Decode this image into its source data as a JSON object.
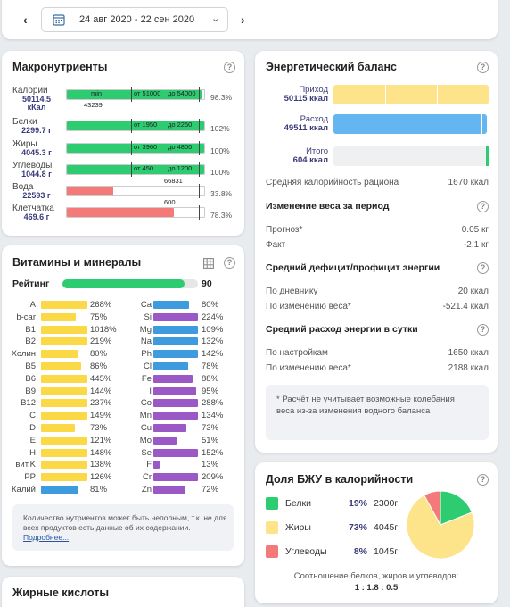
{
  "header": {
    "date_range": "24 авг 2020 - 22 сен 2020"
  },
  "macro": {
    "title": "Макронутриенты",
    "rows": [
      {
        "name": "Калории",
        "value": "50114.5",
        "unit": "кКал",
        "pct": "98.3%",
        "min_label": "min",
        "from": "от 51000",
        "to": "до 54000",
        "below": "43239",
        "fill": 0.98,
        "color": "green"
      },
      {
        "name": "Белки",
        "value": "2299.7 г",
        "pct": "102%",
        "from": "от 1950",
        "to": "до 2250",
        "fill": 1.0,
        "color": "green"
      },
      {
        "name": "Жиры",
        "value": "4045.3 г",
        "pct": "100%",
        "from": "от 3960",
        "to": "до 4800",
        "fill": 1.0,
        "color": "green"
      },
      {
        "name": "Углеводы",
        "value": "1044.8 г",
        "pct": "100%",
        "from": "от 450",
        "to": "до 1200",
        "fill": 1.0,
        "color": "green"
      },
      {
        "name": "Вода",
        "value": "22593 г",
        "pct": "33.8%",
        "mark": "66831",
        "fill": 0.34,
        "color": "red"
      },
      {
        "name": "Клетчатка",
        "value": "469.6 г",
        "pct": "78.3%",
        "mark": "600",
        "fill": 0.78,
        "color": "red"
      }
    ]
  },
  "vitamins": {
    "title": "Витамины и минералы",
    "rating_label": "Рейтинг",
    "rating_value": "90",
    "rating_fill": 0.9,
    "left": [
      {
        "name": "A",
        "pct": "268%",
        "fill": 1.0,
        "color": "yellow"
      },
      {
        "name": "b-car",
        "pct": "75%",
        "fill": 0.75,
        "color": "yellow"
      },
      {
        "name": "B1",
        "pct": "1018%",
        "fill": 1.0,
        "color": "yellow"
      },
      {
        "name": "B2",
        "pct": "219%",
        "fill": 1.0,
        "color": "yellow"
      },
      {
        "name": "Холин",
        "pct": "80%",
        "fill": 0.8,
        "color": "yellow"
      },
      {
        "name": "B5",
        "pct": "86%",
        "fill": 0.86,
        "color": "yellow"
      },
      {
        "name": "B6",
        "pct": "445%",
        "fill": 1.0,
        "color": "yellow"
      },
      {
        "name": "B9",
        "pct": "144%",
        "fill": 1.0,
        "color": "yellow"
      },
      {
        "name": "B12",
        "pct": "237%",
        "fill": 1.0,
        "color": "yellow"
      },
      {
        "name": "C",
        "pct": "149%",
        "fill": 1.0,
        "color": "yellow"
      },
      {
        "name": "D",
        "pct": "73%",
        "fill": 0.73,
        "color": "yellow"
      },
      {
        "name": "E",
        "pct": "121%",
        "fill": 1.0,
        "color": "yellow"
      },
      {
        "name": "H",
        "pct": "148%",
        "fill": 1.0,
        "color": "yellow"
      },
      {
        "name": "вит.K",
        "pct": "138%",
        "fill": 1.0,
        "color": "yellow"
      },
      {
        "name": "PP",
        "pct": "126%",
        "fill": 1.0,
        "color": "yellow"
      },
      {
        "name": "Калий",
        "pct": "81%",
        "fill": 0.81,
        "color": "blue"
      }
    ],
    "right": [
      {
        "name": "Ca",
        "pct": "80%",
        "fill": 0.8,
        "color": "blue"
      },
      {
        "name": "Si",
        "pct": "224%",
        "fill": 1.0,
        "color": "purple"
      },
      {
        "name": "Mg",
        "pct": "109%",
        "fill": 1.0,
        "color": "blue"
      },
      {
        "name": "Na",
        "pct": "132%",
        "fill": 1.0,
        "color": "blue"
      },
      {
        "name": "Ph",
        "pct": "142%",
        "fill": 1.0,
        "color": "blue"
      },
      {
        "name": "Cl",
        "pct": "78%",
        "fill": 0.78,
        "color": "blue"
      },
      {
        "name": "Fe",
        "pct": "88%",
        "fill": 0.88,
        "color": "purple"
      },
      {
        "name": "I",
        "pct": "95%",
        "fill": 0.95,
        "color": "purple"
      },
      {
        "name": "Co",
        "pct": "288%",
        "fill": 1.0,
        "color": "purple"
      },
      {
        "name": "Mn",
        "pct": "134%",
        "fill": 1.0,
        "color": "purple"
      },
      {
        "name": "Cu",
        "pct": "73%",
        "fill": 0.73,
        "color": "purple"
      },
      {
        "name": "Mo",
        "pct": "51%",
        "fill": 0.51,
        "color": "purple"
      },
      {
        "name": "Se",
        "pct": "152%",
        "fill": 1.0,
        "color": "purple"
      },
      {
        "name": "F",
        "pct": "13%",
        "fill": 0.13,
        "color": "purple"
      },
      {
        "name": "Cr",
        "pct": "209%",
        "fill": 1.0,
        "color": "purple"
      },
      {
        "name": "Zn",
        "pct": "72%",
        "fill": 0.72,
        "color": "purple"
      }
    ],
    "note": "Количество нутриентов может быть неполным, т.к. не для всех продуктов есть данные об их содержании.",
    "note_link": "Подробнее..."
  },
  "fatty": {
    "title": "Жирные кислоты"
  },
  "energy": {
    "title": "Энергетический баланс",
    "intake_label": "Приход",
    "intake_value": "50115 ккал",
    "expense_label": "Расход",
    "expense_value": "49511 ккал",
    "total_label": "Итого",
    "total_value": "604 ккал",
    "avg_label": "Средняя калорийность рациона",
    "avg_value": "1670 ккал",
    "weight_title": "Изменение веса за период",
    "forecast_label": "Прогноз*",
    "forecast_value": "0.05 кг",
    "fact_label": "Факт",
    "fact_value": "-2.1 кг",
    "deficit_title": "Средний дефицит/профицит энергии",
    "diary_label": "По дневнику",
    "diary_value": "20 ккал",
    "byweight_label": "По изменению веса*",
    "byweight_value": "-521.4 ккал",
    "daily_title": "Средний расход энергии в сутки",
    "settings_label": "По настройкам",
    "settings_value": "1650 ккал",
    "byweight2_label": "По изменению веса*",
    "byweight2_value": "2188 ккал",
    "footnote": "* Расчёт не учитывает возможные колебания веса из-за изменения водного баланса"
  },
  "bju": {
    "title": "Доля БЖУ в калорийности",
    "rows": [
      {
        "name": "Белки",
        "pct": "19%",
        "grams": "2300г",
        "color": "#2ecc71"
      },
      {
        "name": "Жиры",
        "pct": "73%",
        "grams": "4045г",
        "color": "#fde38a"
      },
      {
        "name": "Углеводы",
        "pct": "8%",
        "grams": "1045г",
        "color": "#f47a7a"
      }
    ],
    "pie": [
      19,
      73,
      8
    ],
    "ratio_label": "Соотношение белков, жиров и углеводов:",
    "ratio_value": "1 : 1.8 : 0.5"
  }
}
